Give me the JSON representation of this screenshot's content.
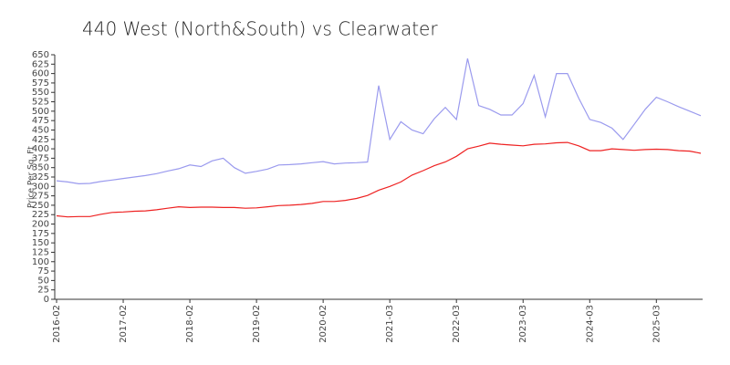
{
  "chart_data": {
    "type": "line",
    "title": "440 West (North&South) vs Clearwater",
    "y_label": "Price Per Sq. Ft",
    "categories": [
      "2016-02",
      null,
      null,
      null,
      null,
      null,
      "2017-02",
      null,
      null,
      null,
      null,
      null,
      "2018-02",
      null,
      null,
      null,
      null,
      null,
      "2019-02",
      null,
      null,
      null,
      null,
      null,
      "2020-02",
      null,
      null,
      null,
      null,
      null,
      "2021-03",
      null,
      null,
      null,
      null,
      null,
      "2022-03",
      null,
      null,
      null,
      null,
      null,
      "2023-03",
      null,
      null,
      null,
      null,
      null,
      "2024-03",
      null,
      null,
      null,
      null,
      null,
      "2025-03",
      null,
      null,
      null,
      null
    ],
    "series": [
      {
        "color": "#9a9aee",
        "values": [
          315,
          312,
          307,
          308,
          313,
          317,
          321,
          325,
          329,
          334,
          341,
          347,
          357,
          353,
          368,
          375,
          350,
          335,
          340,
          346,
          357,
          358,
          360,
          363,
          366,
          360,
          362,
          363,
          365,
          568,
          425,
          472,
          450,
          440,
          480,
          510,
          478,
          640,
          515,
          505,
          490,
          490,
          520,
          595,
          485,
          600,
          600,
          535,
          478,
          470,
          455,
          425,
          465,
          505,
          537,
          525,
          512,
          500,
          488
        ]
      },
      {
        "color": "#ee2222",
        "values": [
          222,
          219,
          220,
          220,
          226,
          231,
          232,
          234,
          235,
          238,
          242,
          246,
          244,
          245,
          245,
          244,
          244,
          242,
          243,
          246,
          249,
          250,
          252,
          255,
          260,
          260,
          263,
          268,
          276,
          290,
          300,
          312,
          330,
          342,
          355,
          365,
          380,
          400,
          407,
          415,
          412,
          410,
          408,
          412,
          413,
          416,
          417,
          408,
          395,
          395,
          400,
          398,
          396,
          398,
          399,
          398,
          395,
          394,
          388
        ]
      }
    ],
    "ylim": [
      0,
      650
    ],
    "yticks": [
      0,
      25,
      50,
      75,
      100,
      125,
      150,
      175,
      200,
      225,
      250,
      275,
      300,
      325,
      350,
      375,
      400,
      425,
      450,
      475,
      500,
      525,
      550,
      575,
      600,
      625,
      650
    ]
  }
}
